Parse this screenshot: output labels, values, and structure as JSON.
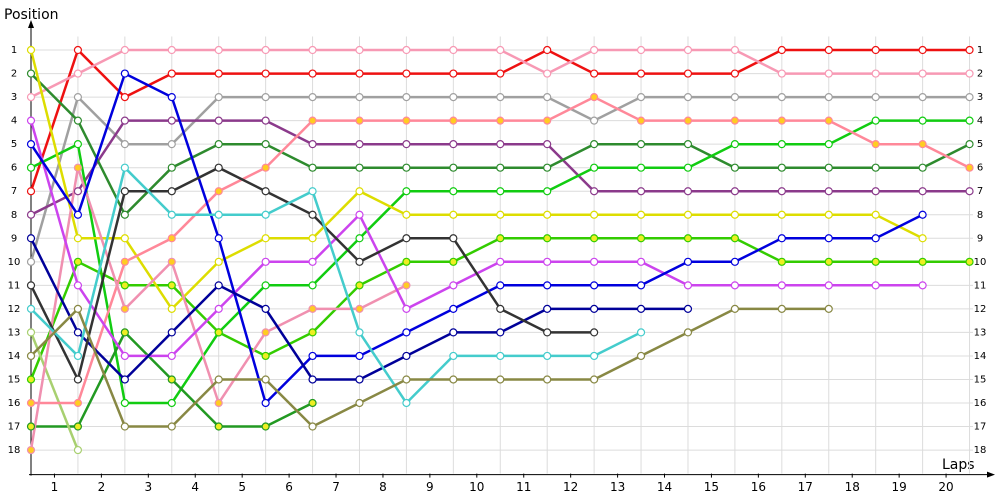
{
  "chart_data": {
    "type": "line",
    "y_label": "Position",
    "x_label": "Laps",
    "x": [
      0,
      1,
      2,
      3,
      4,
      5,
      6,
      7,
      8,
      9,
      10,
      11,
      12,
      13,
      14,
      15,
      16,
      17,
      18,
      19,
      20
    ],
    "xlim": [
      0,
      20.5
    ],
    "xticks": [
      {
        "value": 0.5,
        "label": "1"
      },
      {
        "value": 1.5,
        "label": "2"
      },
      {
        "value": 2.5,
        "label": "3"
      },
      {
        "value": 3.5,
        "label": "4"
      },
      {
        "value": 4.5,
        "label": "5"
      },
      {
        "value": 5.5,
        "label": "6"
      },
      {
        "value": 6.5,
        "label": "7"
      },
      {
        "value": 7.5,
        "label": "8"
      },
      {
        "value": 8.5,
        "label": "9"
      },
      {
        "value": 9.5,
        "label": "10"
      },
      {
        "value": 10.5,
        "label": "11"
      },
      {
        "value": 11.5,
        "label": "12"
      },
      {
        "value": 12.5,
        "label": "13"
      },
      {
        "value": 13.5,
        "label": "14"
      },
      {
        "value": 14.5,
        "label": "15"
      },
      {
        "value": 15.5,
        "label": "16"
      },
      {
        "value": 16.5,
        "label": "17"
      },
      {
        "value": 17.5,
        "label": "18"
      },
      {
        "value": 18.5,
        "label": "19"
      },
      {
        "value": 19.5,
        "label": "20"
      }
    ],
    "ylim": [
      0,
      19
    ],
    "invert_y": true,
    "yticks": [
      1,
      2,
      3,
      4,
      5,
      6,
      7,
      8,
      9,
      10,
      11,
      12,
      13,
      14,
      15,
      16,
      17,
      18
    ],
    "grid": true,
    "series": [
      {
        "color": "#ee1111",
        "marker_fill": "#ffffff",
        "values": [
          7,
          1,
          3,
          2,
          2,
          2,
          2,
          2,
          2,
          2,
          2,
          1,
          2,
          2,
          2,
          2,
          1,
          1,
          1,
          1,
          1
        ]
      },
      {
        "color": "#f799b4",
        "marker_fill": "#ffffff",
        "values": [
          3,
          2,
          1,
          1,
          1,
          1,
          1,
          1,
          1,
          1,
          1,
          2,
          1,
          1,
          1,
          1,
          2,
          2,
          2,
          2,
          2
        ]
      },
      {
        "color": "#a0a0a0",
        "marker_fill": "#ffffff",
        "values": [
          10,
          3,
          5,
          5,
          3,
          3,
          3,
          3,
          3,
          3,
          3,
          3,
          4,
          3,
          3,
          3,
          3,
          3,
          3,
          3,
          3
        ]
      },
      {
        "color": "#8b3a8b",
        "marker_fill": "#ffffff",
        "values": [
          8,
          7,
          4,
          4,
          4,
          4,
          5,
          5,
          5,
          5,
          5,
          5,
          7,
          7,
          7,
          7,
          7,
          7,
          7,
          7,
          7
        ]
      },
      {
        "color": "#2e8b2e",
        "marker_fill": "#ffffff",
        "values": [
          2,
          4,
          8,
          6,
          5,
          5,
          6,
          6,
          6,
          6,
          6,
          6,
          5,
          5,
          5,
          6,
          6,
          6,
          6,
          6,
          5
        ]
      },
      {
        "color": "#11cc11",
        "marker_fill": "#ffffff",
        "values": [
          6,
          5,
          16,
          16,
          13,
          11,
          11,
          9,
          7,
          7,
          7,
          7,
          6,
          6,
          6,
          5,
          5,
          5,
          4,
          4,
          4
        ]
      },
      {
        "color": "#33cc00",
        "marker_fill": "#eeee22",
        "values": [
          15,
          10,
          11,
          11,
          13,
          14,
          13,
          11,
          10,
          10,
          9,
          9,
          9,
          9,
          9,
          9,
          10,
          10,
          10,
          10,
          10
        ]
      },
      {
        "color": "#229922",
        "marker_fill": "#eeee22",
        "values": [
          17,
          17,
          13,
          15,
          17,
          17,
          16,
          null,
          null,
          null,
          null,
          null,
          null,
          null,
          null,
          null,
          null,
          null,
          null,
          null,
          null
        ]
      },
      {
        "color": "#a8d070",
        "marker_fill": "#ffffff",
        "values": [
          13,
          18,
          null,
          null,
          null,
          null,
          null,
          null,
          null,
          null,
          null,
          null,
          null,
          null,
          null,
          null,
          null,
          null,
          null,
          null,
          null
        ]
      },
      {
        "color": "#dddd00",
        "marker_fill": "#ffffff",
        "values": [
          1,
          9,
          9,
          12,
          10,
          9,
          9,
          7,
          8,
          8,
          8,
          8,
          8,
          8,
          8,
          8,
          8,
          8,
          8,
          9,
          null
        ]
      },
      {
        "color": "#ff8899",
        "marker_fill": "#ffcc22",
        "values": [
          16,
          16,
          10,
          9,
          7,
          6,
          4,
          4,
          4,
          4,
          4,
          4,
          3,
          4,
          4,
          4,
          4,
          4,
          5,
          5,
          6
        ]
      },
      {
        "color": "#f090b0",
        "marker_fill": "#ffcc22",
        "values": [
          18,
          6,
          12,
          10,
          16,
          13,
          12,
          12,
          11,
          null,
          null,
          null,
          null,
          null,
          null,
          null,
          null,
          null,
          null,
          null,
          null
        ]
      },
      {
        "color": "#cc44ee",
        "marker_fill": "#ffffff",
        "values": [
          4,
          11,
          14,
          14,
          12,
          10,
          10,
          8,
          12,
          11,
          10,
          10,
          10,
          10,
          11,
          11,
          11,
          11,
          11,
          11,
          null
        ]
      },
      {
        "color": "#0000dd",
        "marker_fill": "#ffffff",
        "values": [
          5,
          8,
          2,
          3,
          9,
          16,
          14,
          14,
          13,
          12,
          11,
          11,
          11,
          11,
          10,
          10,
          9,
          9,
          9,
          8,
          null
        ]
      },
      {
        "color": "#000099",
        "marker_fill": "#ffffff",
        "values": [
          9,
          13,
          15,
          13,
          11,
          12,
          15,
          15,
          14,
          13,
          13,
          12,
          12,
          12,
          12,
          null,
          null,
          null,
          null,
          null,
          null
        ]
      },
      {
        "color": "#333333",
        "marker_fill": "#ffffff",
        "values": [
          11,
          15,
          7,
          7,
          6,
          7,
          8,
          10,
          9,
          9,
          12,
          13,
          13,
          null,
          null,
          null,
          null,
          null,
          null,
          null,
          null
        ]
      },
      {
        "color": "#44cccc",
        "marker_fill": "#ffffff",
        "values": [
          12,
          14,
          6,
          8,
          8,
          8,
          7,
          13,
          16,
          14,
          14,
          14,
          14,
          13,
          null,
          null,
          null,
          null,
          null,
          null,
          null
        ]
      },
      {
        "color": "#888844",
        "marker_fill": "#ffffff",
        "values": [
          14,
          12,
          17,
          17,
          15,
          15,
          17,
          16,
          15,
          15,
          15,
          15,
          15,
          14,
          13,
          12,
          12,
          12,
          null,
          null,
          null
        ]
      }
    ]
  }
}
